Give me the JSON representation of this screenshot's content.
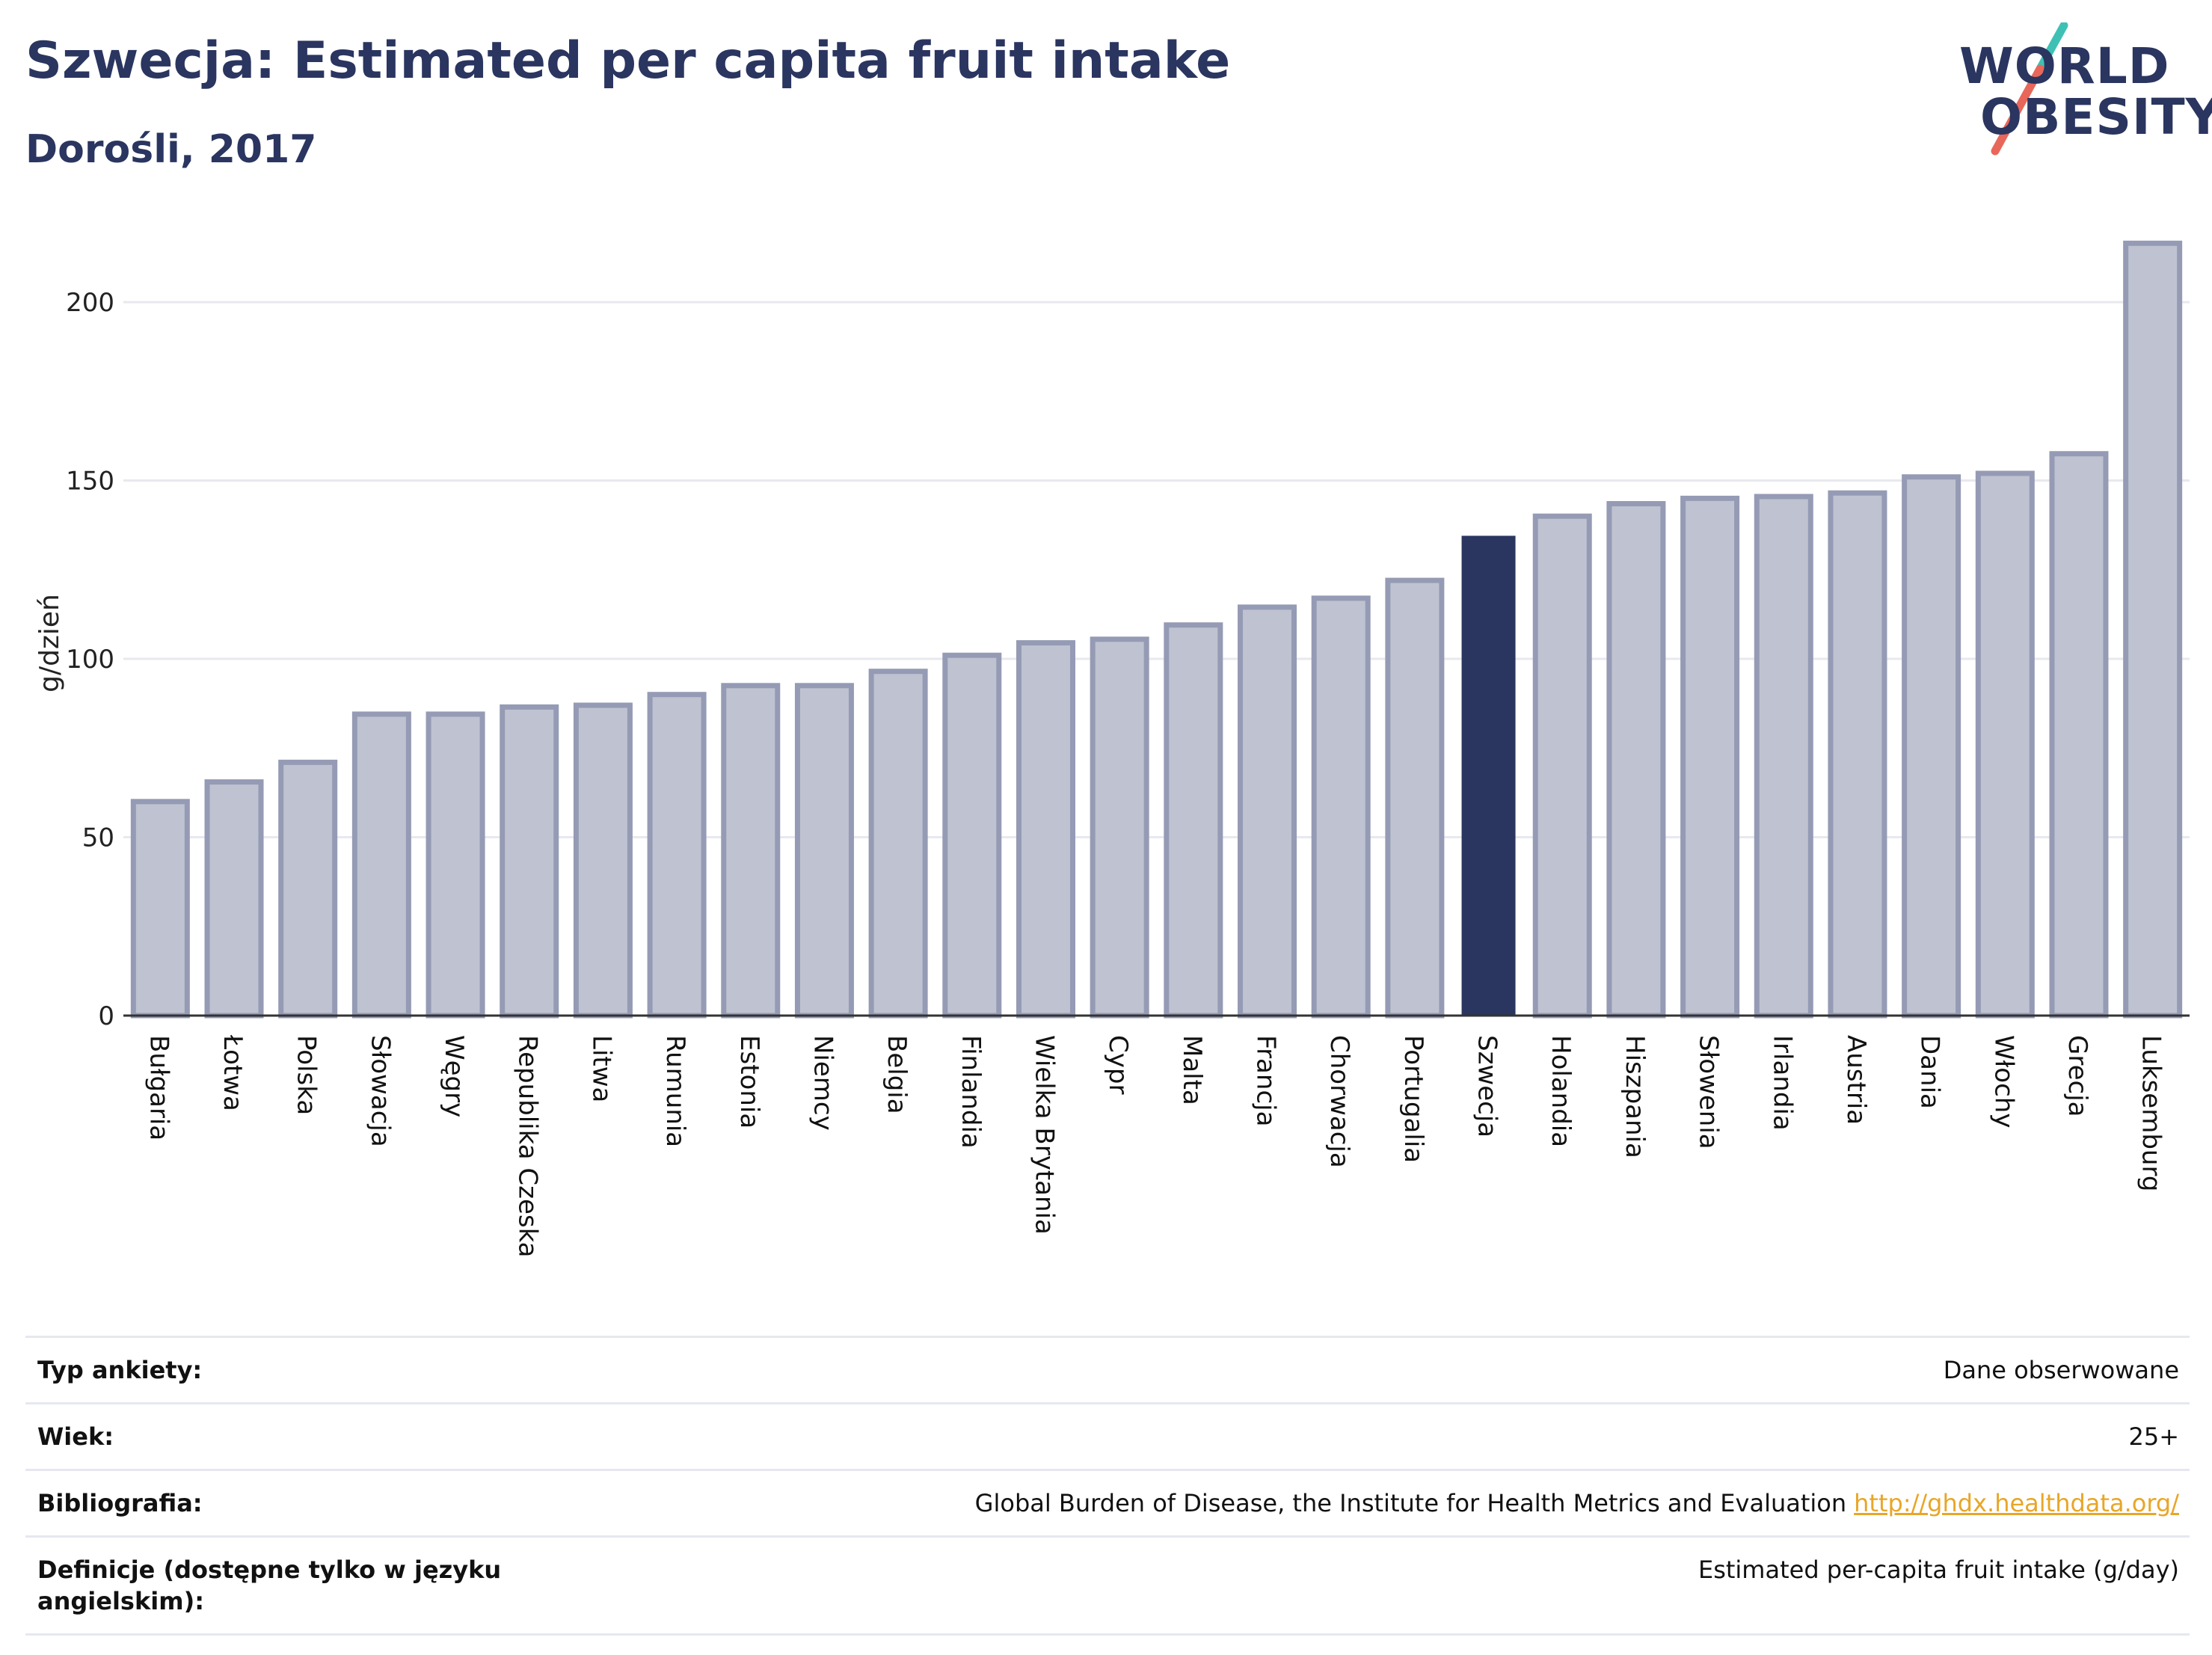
{
  "header": {
    "title": "Szwecja: Estimated per capita fruit intake",
    "subtitle": "Dorośli, 2017"
  },
  "logo": {
    "line1": "WORLD",
    "line2": "OBESITY"
  },
  "chart_data": {
    "type": "bar",
    "title": "Szwecja: Estimated per capita fruit intake",
    "subtitle": "Dorośli, 2017",
    "ylabel": "g/dzień",
    "xlabel": "",
    "ylim": [
      0,
      220
    ],
    "yticks": [
      0,
      50,
      100,
      150,
      200
    ],
    "grid": true,
    "highlight": "Szwecja",
    "categories": [
      "Bułgaria",
      "Łotwa",
      "Polska",
      "Słowacja",
      "Węgry",
      "Republika Czeska",
      "Litwa",
      "Rumunia",
      "Estonia",
      "Niemcy",
      "Belgia",
      "Finlandia",
      "Wielka Brytania",
      "Cypr",
      "Malta",
      "Francja",
      "Chorwacja",
      "Portugalia",
      "Szwecja",
      "Holandia",
      "Hiszpania",
      "Słowenia",
      "Irlandia",
      "Austria",
      "Dania",
      "Włochy",
      "Grecja",
      "Luksemburg"
    ],
    "values": [
      60,
      65.5,
      71,
      84.5,
      84.5,
      86.5,
      87,
      90,
      92.5,
      92.5,
      96.5,
      101,
      104.5,
      105.5,
      109.5,
      114.5,
      117,
      122,
      134.5,
      140,
      143.5,
      145,
      145.5,
      146.5,
      151,
      152,
      157.5,
      216.5
    ],
    "colors": {
      "bar": "#bfc2d0",
      "bar_border": "#959bb4",
      "highlight": "#2a3560",
      "grid": "#e8e9ef",
      "axis": "#333333"
    }
  },
  "info": {
    "rows": [
      {
        "label": "Typ ankiety:",
        "value": "Dane obserwowane"
      },
      {
        "label": "Wiek:",
        "value": "25+"
      },
      {
        "label": "Bibliografia:",
        "value": "Global Burden of Disease, the Institute for Health Metrics and Evaluation",
        "link": "http://ghdx.healthdata.org/"
      },
      {
        "label": "Definicje (dostępne tylko w języku angielskim):",
        "value": "Estimated per-capita fruit intake (g/day)"
      }
    ]
  }
}
